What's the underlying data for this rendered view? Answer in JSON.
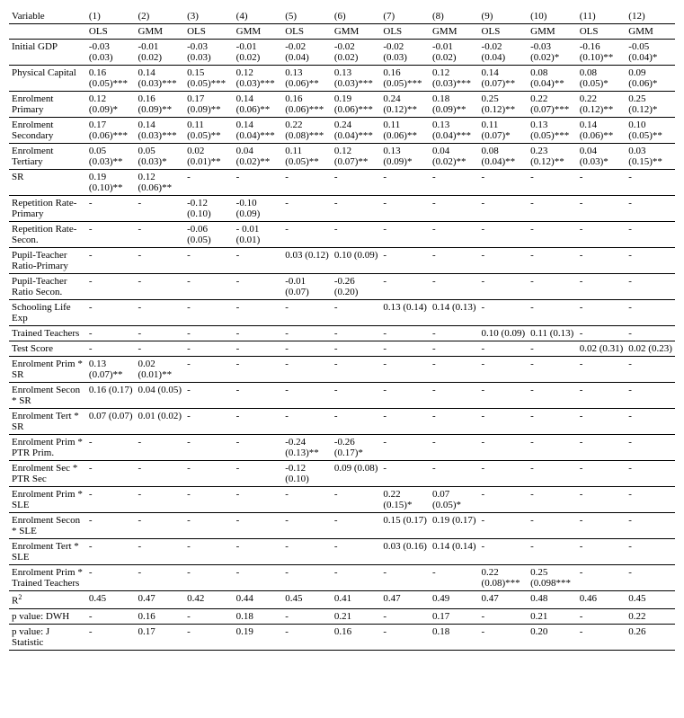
{
  "header": {
    "variable": "Variable",
    "cols": [
      "(1)",
      "(2)",
      "(3)",
      "(4)",
      "(5)",
      "(6)",
      "(7)",
      "(8)",
      "(9)",
      "(10)",
      "(11)",
      "(12)"
    ]
  },
  "subheader": [
    "OLS",
    "GMM",
    "OLS",
    "GMM",
    "OLS",
    "GMM",
    "OLS",
    "GMM",
    "OLS",
    "GMM",
    "OLS",
    "GMM"
  ],
  "rows": [
    {
      "label": "Initial GDP",
      "sep": true,
      "cells": [
        "-0.03 (0.03)",
        "-0.01 (0.02)",
        "-0.03 (0.03)",
        "-0.01 (0.02)",
        "-0.02 (0.04)",
        "-0.02 (0.02)",
        "-0.02 (0.03)",
        "-0.01 (0.02)",
        "-0.02 (0.04)",
        "-0.03 (0.02)*",
        "-0.16 (0.10)**",
        "-0.05 (0.04)*"
      ]
    },
    {
      "label": "Physical Capital",
      "sep": true,
      "cells": [
        "0.16 (0.05)***",
        "0.14 (0.03)***",
        "0.15 (0.05)***",
        "0.12 (0.03)***",
        "0.13 (0.06)**",
        "0.13 (0.03)***",
        "0.16 (0.05)***",
        "0.12 (0.03)***",
        "0.14 (0.07)**",
        "0.08 (0.04)**",
        "0.08 (0.05)*",
        "0.09 (0.06)*"
      ]
    },
    {
      "label": "Enrolment Primary",
      "sep": true,
      "cells": [
        "0.12 (0.09)*",
        "0.16 (0.09)**",
        "0.17 (0.09)**",
        "0.14 (0.06)**",
        "0.16 (0.06)***",
        "0.19 (0.06)***",
        "0.24 (0.12)**",
        "0.18 (0.09)**",
        "0.25 (0.12)**",
        "0.22 (0.07)***",
        "0.22 (0.12)**",
        "0.25 (0.12)*"
      ]
    },
    {
      "label": "Enrolment Secondary",
      "sep": true,
      "cells": [
        "0.17 (0.06)***",
        "0.14 (0.03)***",
        "0.11 (0.05)**",
        "0.14 (0.04)***",
        "0.22 (0.08)***",
        "0.24 (0.04)***",
        "0.11 (0.06)**",
        "0.13 (0.04)***",
        "0.11 (0.07)*",
        "0.13 (0.05)***",
        "0.14 (0.06)**",
        "0.10 (0.05)**"
      ]
    },
    {
      "label": "Enrolment Tertiary",
      "sep": true,
      "cells": [
        "0.05 (0.03)**",
        "0.05 (0.03)*",
        "0.02 (0.01)**",
        "0.04 (0.02)**",
        "0.11 (0.05)**",
        "0.12 (0.07)**",
        "0.13 (0.09)*",
        "0.04 (0.02)**",
        "0.08 (0.04)**",
        "0.23 (0.12)**",
        "0.04 (0.03)*",
        "0.03 (0.15)**"
      ]
    },
    {
      "label": "SR",
      "sep": true,
      "cells": [
        "0.19 (0.10)**",
        "0.12 (0.06)**",
        "-",
        "-",
        "-",
        "-",
        "-",
        "-",
        "-",
        "-",
        "-",
        "-"
      ]
    },
    {
      "label": "Repetition Rate-Primary",
      "sep": true,
      "cells": [
        "-",
        "-",
        "-0.12 (0.10)",
        "-0.10 (0.09)",
        "-",
        "-",
        "-",
        "-",
        "-",
        "-",
        "-",
        "-"
      ]
    },
    {
      "label": "Repetition Rate-Secon.",
      "sep": true,
      "cells": [
        "-",
        "-",
        "-0.06 (0.05)",
        "- 0.01 (0.01)",
        "-",
        "-",
        "-",
        "-",
        "-",
        "-",
        "-",
        "-"
      ]
    },
    {
      "label": "Pupil-Teacher Ratio-Primary",
      "sep": true,
      "cells": [
        "-",
        "-",
        "-",
        "-",
        "0.03 (0.12)",
        "0.10 (0.09)",
        "-",
        "-",
        "-",
        "-",
        "-",
        "-"
      ]
    },
    {
      "label": "Pupil-Teacher Ratio Secon.",
      "sep": true,
      "cells": [
        "-",
        "-",
        "-",
        "-",
        "-0.01 (0.07)",
        "-0.26 (0.20)",
        "-",
        "-",
        "-",
        "-",
        "-",
        "-"
      ]
    },
    {
      "label": "Schooling Life  Exp",
      "sep": true,
      "cells": [
        "-",
        "-",
        "-",
        "-",
        "-",
        "-",
        "0.13 (0.14)",
        "0.14 (0.13)",
        "-",
        "-",
        "-",
        "-"
      ]
    },
    {
      "label": "Trained Teachers",
      "sep": true,
      "cells": [
        "-",
        "-",
        "-",
        "-",
        "-",
        "-",
        "-",
        "-",
        "0.10 (0.09)",
        "0.11 (0.13)",
        "-",
        "-"
      ]
    },
    {
      "label": "Test Score",
      "sep": true,
      "cells": [
        "-",
        "-",
        "-",
        "-",
        "-",
        "-",
        "-",
        "-",
        "-",
        "-",
        "0.02 (0.31)",
        "0.02 (0.23)"
      ]
    },
    {
      "label": "Enrolment Prim * SR",
      "sep": true,
      "cells": [
        "0.13 (0.07)**",
        "0.02 (0.01)**",
        "-",
        "-",
        "-",
        "-",
        "-",
        "-",
        "-",
        "-",
        "-",
        "-"
      ]
    },
    {
      "label": "Enrolment Secon * SR",
      "sep": true,
      "cells": [
        "0.16 (0.17)",
        "0.04 (0.05)",
        "-",
        "-",
        "-",
        "-",
        "-",
        "-",
        "-",
        "-",
        "-",
        "-"
      ]
    },
    {
      "label": "Enrolment Tert * SR",
      "sep": true,
      "cells": [
        "0.07 (0.07)",
        "0.01 (0.02)",
        "-",
        "-",
        "-",
        "-",
        "-",
        "-",
        "-",
        "-",
        "-",
        "-"
      ]
    },
    {
      "label": "Enrolment Prim * PTR Prim.",
      "sep": true,
      "cells": [
        "-",
        "-",
        "-",
        "-",
        "-0.24 (0.13)**",
        "-0.26 (0.17)*",
        "-",
        "-",
        "-",
        "-",
        "-",
        "-"
      ]
    },
    {
      "label": "Enrolment Sec * PTR  Sec",
      "sep": true,
      "cells": [
        "-",
        "-",
        "-",
        "-",
        "-0.12 (0.10)",
        "0.09 (0.08)",
        "-",
        "-",
        "-",
        "-",
        "-",
        "-"
      ]
    },
    {
      "label": "Enrolment Prim * SLE",
      "sep": true,
      "cells": [
        "-",
        "-",
        "-",
        "-",
        "-",
        "-",
        "0.22 (0.15)*",
        "0.07 (0.05)*",
        "-",
        "-",
        "-",
        "-"
      ]
    },
    {
      "label": "Enrolment Secon * SLE",
      "sep": true,
      "cells": [
        "-",
        "-",
        "-",
        "-",
        "-",
        "-",
        "0.15 (0.17)",
        "0.19 (0.17)",
        "-",
        "-",
        "-",
        "-"
      ]
    },
    {
      "label": "Enrolment Tert * SLE",
      "sep": true,
      "cells": [
        "-",
        "-",
        "-",
        "-",
        "-",
        "-",
        "0.03 (0.16)",
        "0.14 (0.14)",
        "-",
        "-",
        "-",
        "-"
      ]
    },
    {
      "label": "Enrolment Prim * Trained Teachers",
      "sep": true,
      "cells": [
        "-",
        "-",
        "-",
        "-",
        "-",
        "-",
        "-",
        "-",
        "0.22 (0.08)***",
        "0.25 (0.098***",
        "-",
        "-"
      ]
    },
    {
      "label": "R²",
      "sep": true,
      "cells": [
        "0.45",
        "0.47",
        "0.42",
        "0.44",
        "0.45",
        "0.41",
        "0.47",
        "0.49",
        "0.47",
        "0.48",
        "0.46",
        "0.45"
      ]
    },
    {
      "label": "p value:  DWH",
      "sep": true,
      "cells": [
        "-",
        "0.16",
        "-",
        "0.18",
        "-",
        "0.21",
        "-",
        "0.17",
        "-",
        "0.21",
        "-",
        "0.22"
      ]
    },
    {
      "label": "p value:  J Statistic",
      "sep": true,
      "last": true,
      "cells": [
        "-",
        "0.17",
        "-",
        "0.19",
        "-",
        "0.16",
        "-",
        "0.18",
        "-",
        "0.20",
        "-",
        "0.26"
      ]
    }
  ]
}
